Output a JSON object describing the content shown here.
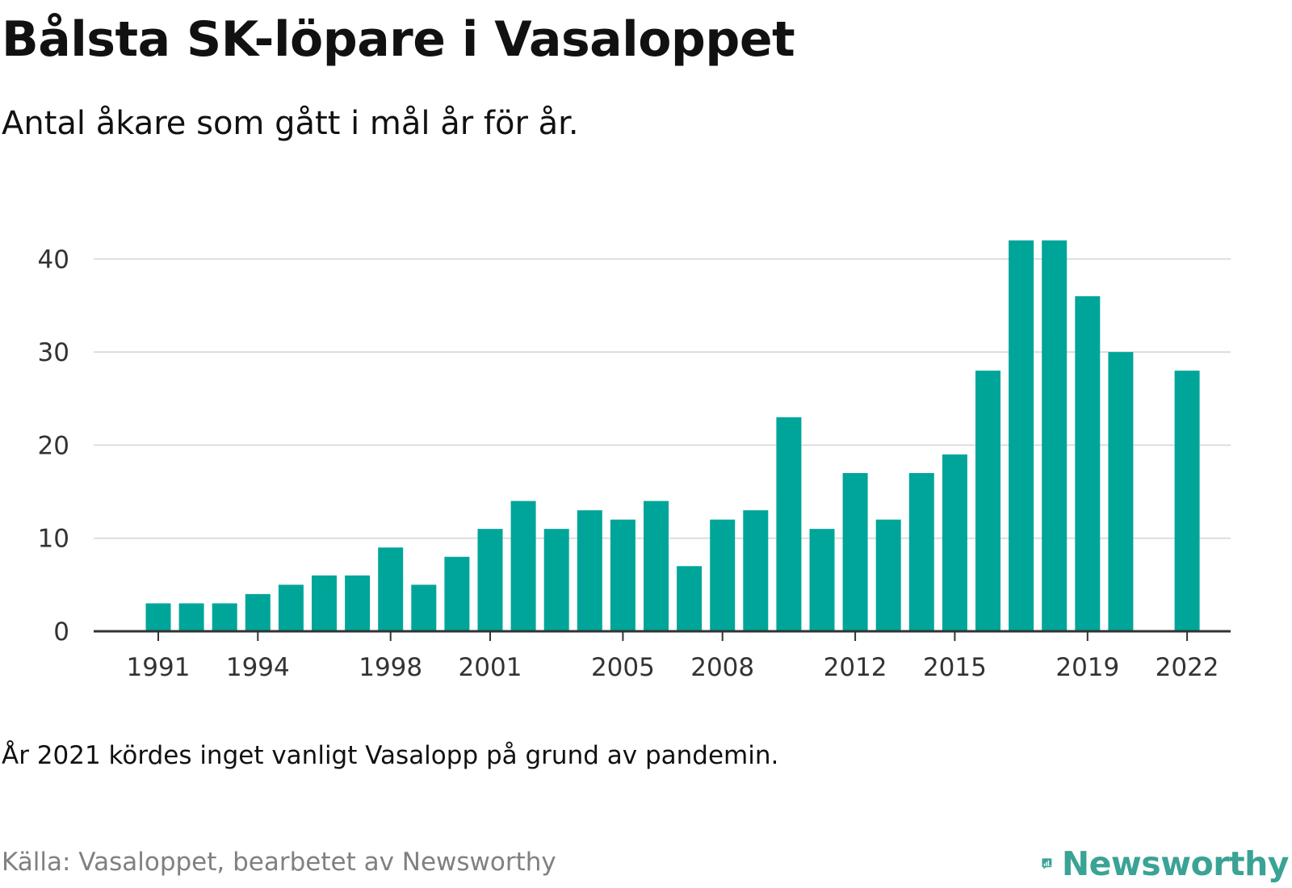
{
  "header": {
    "title": "Bålsta SK-löpare i Vasaloppet",
    "subtitle": "Antal åkare som gått i mål år för år."
  },
  "footer": {
    "note": "År 2021 kördes inget vanligt Vasalopp på grund av pandemin.",
    "source": "Källa: Vasaloppet, bearbetet av Newsworthy",
    "brand": "Newsworthy"
  },
  "colors": {
    "bar": "#00a59a",
    "gridline": "#dddddd",
    "axis": "#333333",
    "brand": "#3aa395"
  },
  "chart_data": {
    "type": "bar",
    "categories": [
      "1991",
      "1992",
      "1993",
      "1994",
      "1995",
      "1996",
      "1997",
      "1998",
      "1999",
      "2000",
      "2001",
      "2002",
      "2003",
      "2004",
      "2005",
      "2006",
      "2007",
      "2008",
      "2009",
      "2010",
      "2011",
      "2012",
      "2013",
      "2014",
      "2015",
      "2016",
      "2017",
      "2018",
      "2019",
      "2020",
      "2021",
      "2022"
    ],
    "values": [
      3,
      3,
      3,
      4,
      5,
      6,
      6,
      9,
      5,
      8,
      11,
      14,
      11,
      13,
      12,
      14,
      7,
      12,
      13,
      23,
      11,
      17,
      12,
      17,
      19,
      28,
      42,
      42,
      36,
      30,
      null,
      28
    ],
    "x_tick_labels": [
      "1991",
      "1994",
      "1998",
      "2001",
      "2005",
      "2008",
      "2012",
      "2015",
      "2019",
      "2022"
    ],
    "y_ticks": [
      0,
      10,
      20,
      30,
      40
    ],
    "ylim": [
      0,
      42
    ],
    "grid": true,
    "legend": "none"
  }
}
